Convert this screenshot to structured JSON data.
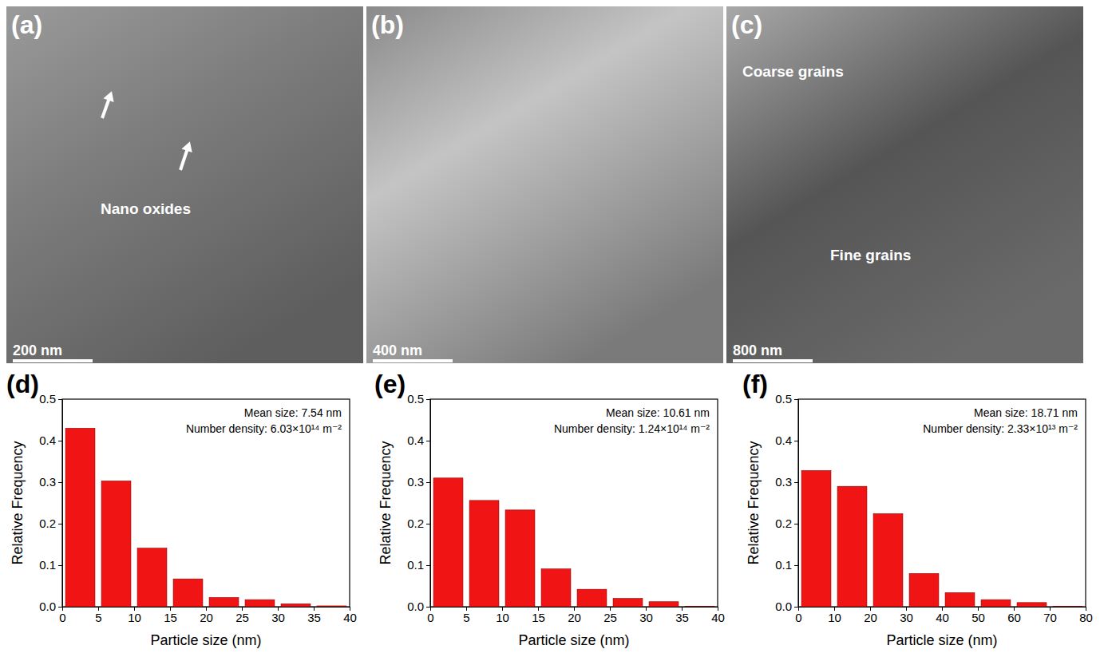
{
  "micrographs": [
    {
      "label": "(a)",
      "scale_bar": "200 nm",
      "annotations": [
        "Nano oxides"
      ]
    },
    {
      "label": "(b)",
      "scale_bar": "400 nm",
      "annotations": []
    },
    {
      "label": "(c)",
      "scale_bar": "800 nm",
      "annotations": [
        "Coarse grains",
        "Fine grains"
      ]
    }
  ],
  "chart_data": [
    {
      "type": "histogram",
      "title": "(d)",
      "annotations": [
        "Mean size: 7.54 nm",
        "Number density: 6.03×10¹⁴ m⁻²"
      ],
      "x_label": "Particle size (nm)",
      "y_label": "Relative Frequency",
      "bins": [
        0,
        5,
        10,
        15,
        20,
        25,
        30,
        35,
        40
      ],
      "values": [
        0.43,
        0.303,
        0.141,
        0.067,
        0.022,
        0.017,
        0.007,
        0.002
      ],
      "color": "#f01414",
      "xlim": [
        0,
        40
      ],
      "ylim": [
        0,
        0.5
      ],
      "xticks": [
        0,
        5,
        10,
        15,
        20,
        25,
        30,
        35,
        40
      ],
      "yticks": [
        {
          "value": 0,
          "label": "0.0"
        },
        0.1,
        0.2,
        0.3,
        0.4,
        0.5
      ]
    },
    {
      "type": "histogram",
      "title": "(e)",
      "annotations": [
        "Mean size: 10.61 nm",
        "Number density: 1.24×10¹⁴ m⁻²"
      ],
      "x_label": "Particle size (nm)",
      "y_label": "Relative Frequency",
      "bins": [
        0,
        5,
        10,
        15,
        20,
        25,
        30,
        35,
        40
      ],
      "values": [
        0.31,
        0.256,
        0.233,
        0.091,
        0.042,
        0.02,
        0.012,
        0.001
      ],
      "color": "#f01414",
      "xlim": [
        0,
        40
      ],
      "ylim": [
        0,
        0.5
      ],
      "xticks": [
        0,
        5,
        10,
        15,
        20,
        25,
        30,
        35,
        40
      ],
      "yticks": [
        {
          "value": 0,
          "label": "0.0"
        },
        0.1,
        0.2,
        0.3,
        0.4,
        0.5
      ]
    },
    {
      "type": "histogram",
      "title": "(f)",
      "annotations": [
        "Mean size: 18.71 nm",
        "Number density: 2.33×10¹³ m⁻²"
      ],
      "x_label": "Particle size (nm)",
      "y_label": "Relative Frequency",
      "bins": [
        0,
        10,
        20,
        30,
        40,
        50,
        60,
        70,
        80
      ],
      "values": [
        0.328,
        0.29,
        0.224,
        0.08,
        0.034,
        0.017,
        0.01,
        0.001
      ],
      "color": "#f01414",
      "xlim": [
        0,
        80
      ],
      "ylim": [
        0,
        0.5
      ],
      "xticks": [
        0,
        10,
        20,
        30,
        40,
        50,
        60,
        70,
        80
      ],
      "yticks": [
        {
          "value": 0,
          "label": "0.0"
        },
        0.1,
        0.2,
        0.3,
        0.4,
        0.5
      ]
    }
  ]
}
